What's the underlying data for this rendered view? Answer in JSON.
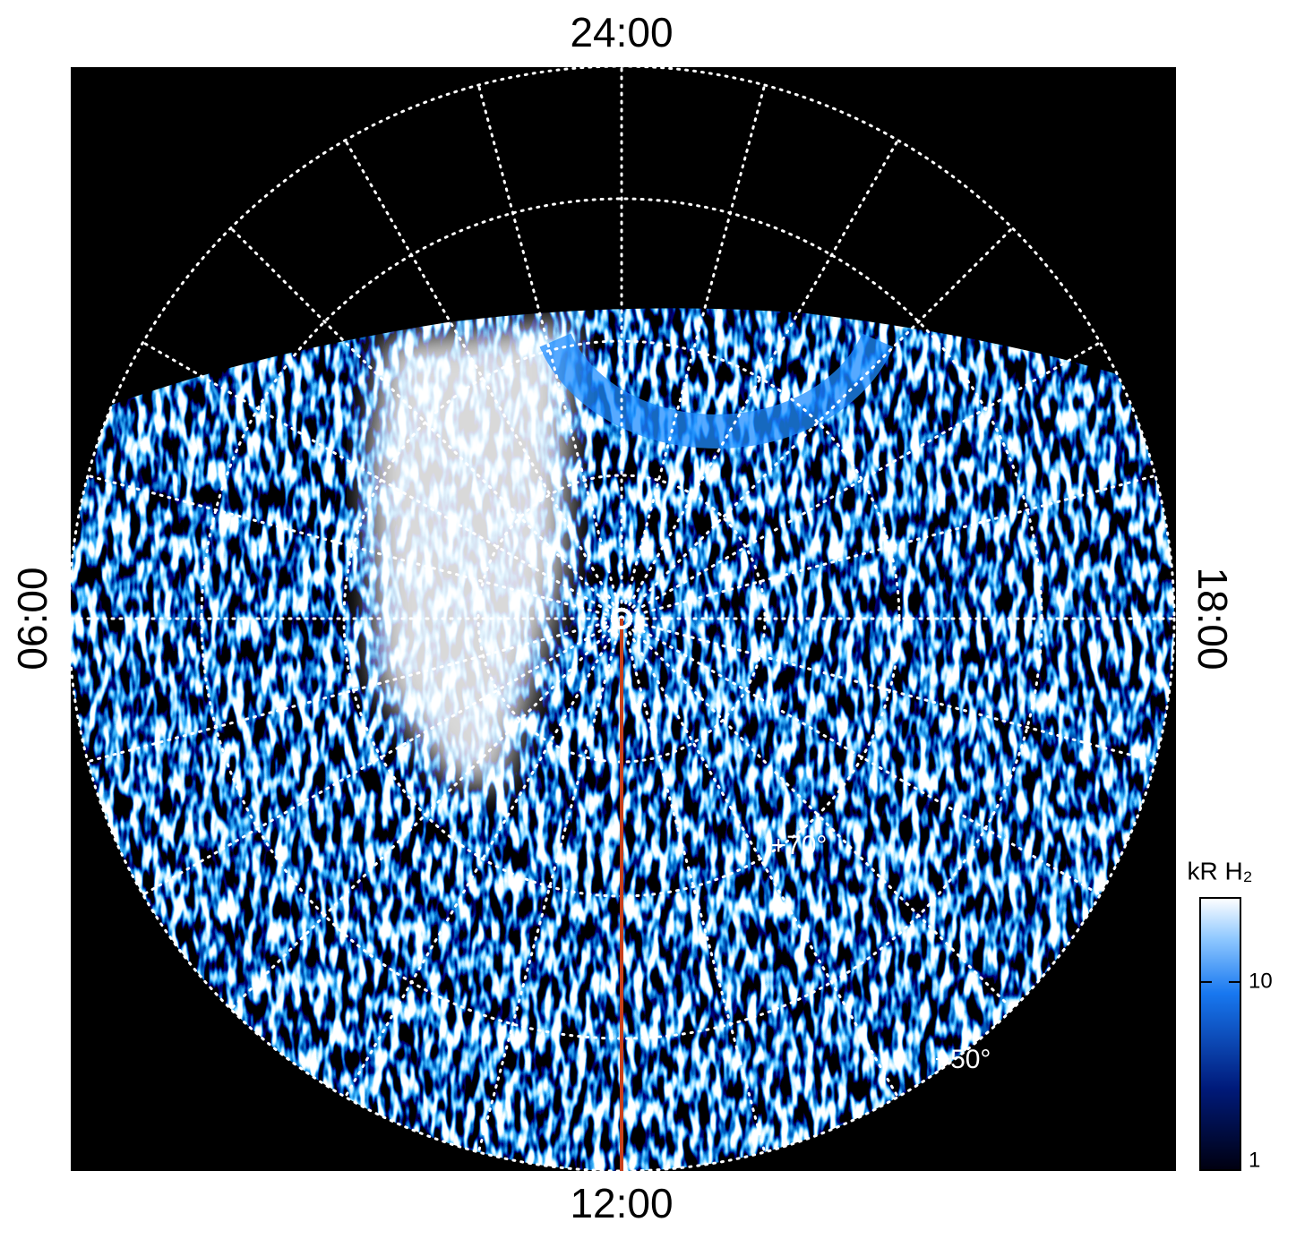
{
  "labels": {
    "top": "24:00",
    "bottom": "12:00",
    "left": "06:00",
    "right": "18:00",
    "lat_inner": "+70°",
    "lat_outer": "+50°"
  },
  "colorbar": {
    "title": "kR H₂",
    "log": true,
    "lim": [
      1,
      28
    ],
    "ticks": [
      1,
      10
    ]
  }
}
